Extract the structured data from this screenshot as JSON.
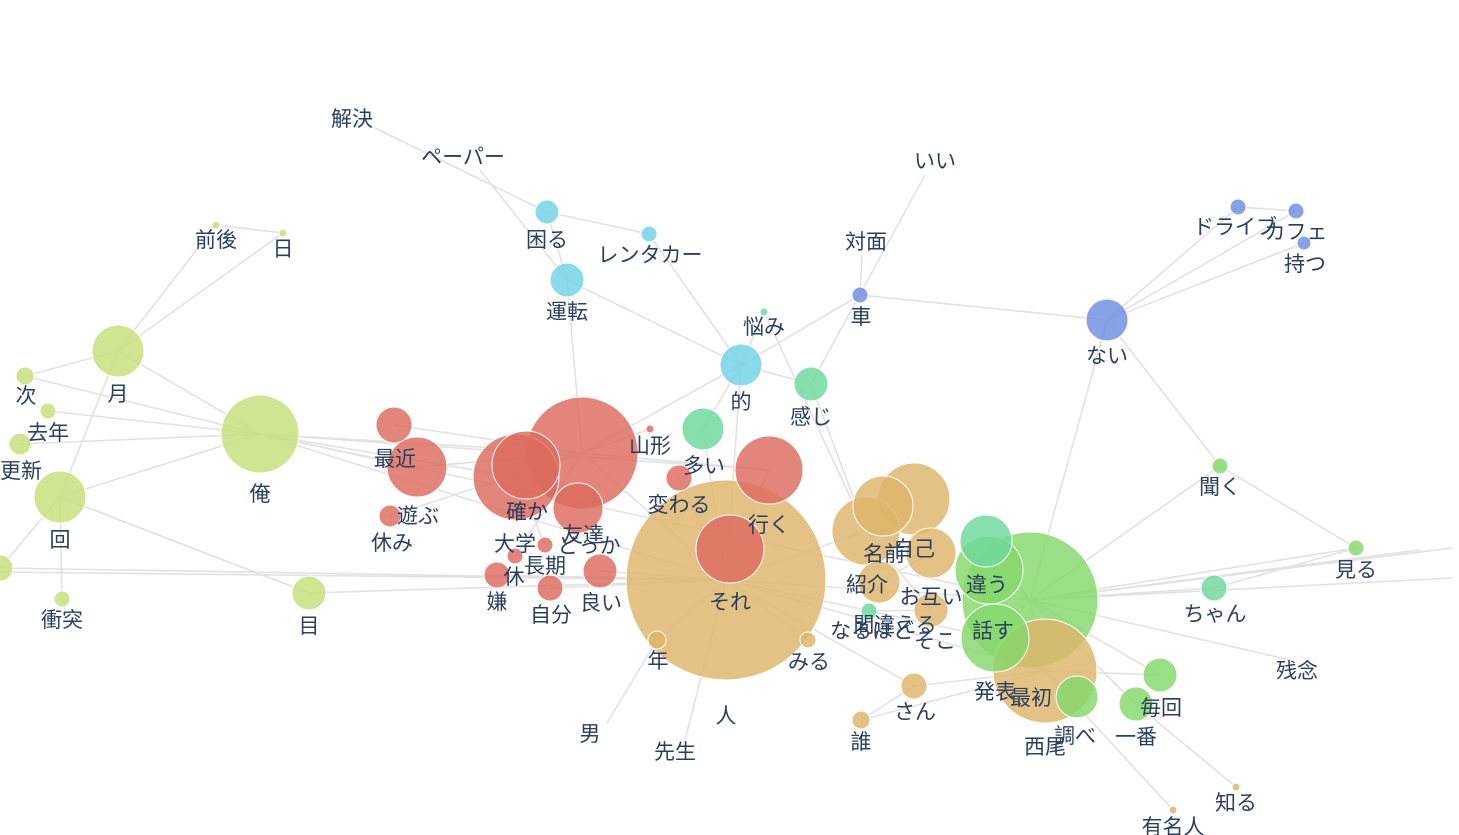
{
  "colors": {
    "red": "#dd6a5e",
    "orange": "#deb46a",
    "lime": "#c6df7a",
    "green": "#84d86a",
    "mint": "#6ed89c",
    "cyan": "#72d2e6",
    "blue": "#6e8ee2",
    "edge": "#e5e0e2",
    "label": "#2a3f5f"
  },
  "network": {
    "nodes": [
      {
        "id": "kaiketsu",
        "label": "解決",
        "g": "cyan",
        "s": 0
      },
      {
        "id": "paper",
        "label": "ペーパー",
        "g": "cyan",
        "s": 0
      },
      {
        "id": "komaru",
        "label": "困る",
        "g": "cyan",
        "s": 12
      },
      {
        "id": "rentacar",
        "label": "レンタカー",
        "g": "cyan",
        "s": 8
      },
      {
        "id": "unten",
        "label": "運転",
        "g": "cyan",
        "s": 17
      },
      {
        "id": "teki",
        "label": "的",
        "g": "cyan",
        "s": 21
      },
      {
        "id": "ii",
        "label": "いい",
        "g": "mint",
        "s": 0
      },
      {
        "id": "taimen",
        "label": "対面",
        "g": "blue",
        "s": 0
      },
      {
        "id": "kuruma",
        "label": "車",
        "g": "blue",
        "s": 8
      },
      {
        "id": "nayami",
        "label": "悩み",
        "g": "mint",
        "s": 4
      },
      {
        "id": "kanji",
        "label": "感じ",
        "g": "mint",
        "s": 17
      },
      {
        "id": "nai",
        "label": "ない",
        "g": "blue",
        "s": 21
      },
      {
        "id": "drive",
        "label": "ドライブ",
        "g": "blue",
        "s": 8
      },
      {
        "id": "cafe",
        "label": "カフェ",
        "g": "blue",
        "s": 8
      },
      {
        "id": "motsu",
        "label": "持つ",
        "g": "blue",
        "s": 7
      },
      {
        "id": "zengo",
        "label": "前後",
        "g": "lime",
        "s": 4
      },
      {
        "id": "hi",
        "label": "日",
        "g": "lime",
        "s": 4
      },
      {
        "id": "tsuki",
        "label": "月",
        "g": "lime",
        "s": 26
      },
      {
        "id": "tsugi",
        "label": "次",
        "g": "lime",
        "s": 9
      },
      {
        "id": "kyonen",
        "label": "去年",
        "g": "lime",
        "s": 8
      },
      {
        "id": "koushin",
        "label": "更新",
        "g": "lime",
        "s": 11
      },
      {
        "id": "kai",
        "label": "回",
        "g": "lime",
        "s": 26
      },
      {
        "id": "leftedge",
        "label": "",
        "g": "lime",
        "s": 13
      },
      {
        "id": "shoutotsu",
        "label": "衝突",
        "g": "lime",
        "s": 8
      },
      {
        "id": "ore",
        "label": "俺",
        "g": "lime",
        "s": 39
      },
      {
        "id": "me",
        "label": "目",
        "g": "lime",
        "s": 17
      },
      {
        "id": "saikin",
        "label": "最近",
        "g": "red",
        "s": 30
      },
      {
        "id": "saikin2",
        "label": "",
        "g": "red",
        "s": 18
      },
      {
        "id": "asobu",
        "label": "遊ぶ",
        "g": "red",
        "s": 11
      },
      {
        "id": "yasumi",
        "label": "休み",
        "g": "red",
        "s": 0
      },
      {
        "id": "yamagata",
        "label": "山形",
        "g": "red",
        "s": 4
      },
      {
        "id": "bigred",
        "label": "",
        "g": "red",
        "s": 56
      },
      {
        "id": "bigred2",
        "label": "",
        "g": "red",
        "s": 34
      },
      {
        "id": "tashika",
        "label": "確か",
        "g": "red",
        "s": 43
      },
      {
        "id": "tomodachi",
        "label": "友達",
        "g": "red",
        "s": 25
      },
      {
        "id": "daigaku",
        "label": "大学",
        "g": "red",
        "s": 0
      },
      {
        "id": "dokoka",
        "label": "どっか",
        "g": "red",
        "s": 0
      },
      {
        "id": "kyu",
        "label": "休",
        "g": "red",
        "s": 8
      },
      {
        "id": "choki",
        "label": "長期",
        "g": "red",
        "s": 8
      },
      {
        "id": "iya",
        "label": "嫌",
        "g": "red",
        "s": 13
      },
      {
        "id": "jibun",
        "label": "自分",
        "g": "red",
        "s": 13
      },
      {
        "id": "yoi",
        "label": "良い",
        "g": "red",
        "s": 17
      },
      {
        "id": "kawaru",
        "label": "変わる",
        "g": "red",
        "s": 13
      },
      {
        "id": "ooi",
        "label": "多い",
        "g": "mint",
        "s": 21
      },
      {
        "id": "iku",
        "label": "行く",
        "g": "red",
        "s": 34
      },
      {
        "id": "sore",
        "label": "それ",
        "g": "orange",
        "s": 100
      },
      {
        "id": "innerred",
        "label": "",
        "g": "red",
        "s": 34
      },
      {
        "id": "toshi",
        "label": "年",
        "g": "orange",
        "s": 9
      },
      {
        "id": "otoko",
        "label": "男",
        "g": "orange",
        "s": 0
      },
      {
        "id": "hito",
        "label": "人",
        "g": "orange",
        "s": 0
      },
      {
        "id": "sensei",
        "label": "先生",
        "g": "orange",
        "s": 0
      },
      {
        "id": "miru",
        "label": "みる",
        "g": "orange",
        "s": 8
      },
      {
        "id": "o1",
        "label": "",
        "g": "orange",
        "s": 30
      },
      {
        "id": "o2",
        "label": "",
        "g": "orange",
        "s": 36
      },
      {
        "id": "namae",
        "label": "名前",
        "g": "orange",
        "s": 34
      },
      {
        "id": "jiko",
        "label": "自己",
        "g": "orange",
        "s": 25
      },
      {
        "id": "shoukai",
        "label": "紹介",
        "g": "orange",
        "s": 21
      },
      {
        "id": "otagai",
        "label": "お互い",
        "g": "orange",
        "s": 17
      },
      {
        "id": "machigaeru",
        "label": "間違える",
        "g": "mint",
        "s": 8
      },
      {
        "id": "naruhodo",
        "label": "なるほど",
        "g": "orange",
        "s": 0
      },
      {
        "id": "soko",
        "label": "そこ",
        "g": "orange",
        "s": 0
      },
      {
        "id": "san",
        "label": "さん",
        "g": "orange",
        "s": 13
      },
      {
        "id": "dare",
        "label": "誰",
        "g": "orange",
        "s": 9
      },
      {
        "id": "mint2",
        "label": "",
        "g": "mint",
        "s": 26
      },
      {
        "id": "chigau",
        "label": "違う",
        "g": "green",
        "s": 34
      },
      {
        "id": "biggreen",
        "label": "",
        "g": "green",
        "s": 68
      },
      {
        "id": "hanasu",
        "label": "話す",
        "g": "green",
        "s": 34
      },
      {
        "id": "saisho",
        "label": "最初",
        "g": "orange",
        "s": 52
      },
      {
        "id": "happyou",
        "label": "発表",
        "g": "green",
        "s": 0
      },
      {
        "id": "nishio",
        "label": "西尾",
        "g": "orange",
        "s": 0
      },
      {
        "id": "shiraberu",
        "label": "調べ",
        "g": "green",
        "s": 21
      },
      {
        "id": "maikai",
        "label": "毎回",
        "g": "green",
        "s": 17
      },
      {
        "id": "ichiban",
        "label": "一番",
        "g": "green",
        "s": 17
      },
      {
        "id": "kiku",
        "label": "聞く",
        "g": "green",
        "s": 8
      },
      {
        "id": "chan",
        "label": "ちゃん",
        "g": "mint",
        "s": 13
      },
      {
        "id": "miru2",
        "label": "見る",
        "g": "green",
        "s": 8
      },
      {
        "id": "zannen",
        "label": "残念",
        "g": "green",
        "s": 0
      },
      {
        "id": "shiru",
        "label": "知る",
        "g": "orange",
        "s": 4
      },
      {
        "id": "yuumei",
        "label": "有名人",
        "g": "orange",
        "s": 4
      }
    ],
    "edges": [
      [
        "kaiketsu",
        "komaru"
      ],
      [
        "paper",
        "unten"
      ],
      [
        "komaru",
        "rentacar"
      ],
      [
        "komaru",
        "unten"
      ],
      [
        "rentacar",
        "teki"
      ],
      [
        "unten",
        "teki"
      ],
      [
        "unten",
        "bigred"
      ],
      [
        "teki",
        "nayami"
      ],
      [
        "teki",
        "kanji"
      ],
      [
        "teki",
        "ooi"
      ],
      [
        "teki",
        "bigred"
      ],
      [
        "teki",
        "sore"
      ],
      [
        "ii",
        "kanji"
      ],
      [
        "taimen",
        "kuruma"
      ],
      [
        "kuruma",
        "nai"
      ],
      [
        "kuruma",
        "teki"
      ],
      [
        "nai",
        "drive"
      ],
      [
        "nai",
        "cafe"
      ],
      [
        "nai",
        "motsu"
      ],
      [
        "nai",
        "kiku"
      ],
      [
        "nai",
        "biggreen"
      ],
      [
        "drive",
        "cafe"
      ],
      [
        "nayami",
        "namae"
      ],
      [
        "kanji",
        "namae"
      ],
      [
        "zengo",
        "tsuki"
      ],
      [
        "hi",
        "tsuki"
      ],
      [
        "zengo",
        "hi"
      ],
      [
        "tsuki",
        "ore"
      ],
      [
        "tsuki",
        "tsugi"
      ],
      [
        "tsuki",
        "kai"
      ],
      [
        "tsugi",
        "ore"
      ],
      [
        "kyonen",
        "ore"
      ],
      [
        "koushin",
        "ore"
      ],
      [
        "kai",
        "ore"
      ],
      [
        "kai",
        "shoutotsu"
      ],
      [
        "kai",
        "leftedge"
      ],
      [
        "kai",
        "me"
      ],
      [
        "leftedge",
        "sore"
      ],
      [
        "me",
        "sore"
      ],
      [
        "me",
        "kai"
      ],
      [
        "ore",
        "bigred"
      ],
      [
        "ore",
        "tashika"
      ],
      [
        "ore",
        "saikin"
      ],
      [
        "ore",
        "iku"
      ],
      [
        "ore",
        "sore"
      ],
      [
        "saikin",
        "bigred"
      ],
      [
        "saikin2",
        "bigred"
      ],
      [
        "asobu",
        "bigred"
      ],
      [
        "yamagata",
        "bigred"
      ],
      [
        "tashika",
        "tomodachi"
      ],
      [
        "bigred",
        "iku"
      ],
      [
        "bigred",
        "sore"
      ],
      [
        "kyu",
        "bigred"
      ],
      [
        "choki",
        "tashika"
      ],
      [
        "iya",
        "sore"
      ],
      [
        "jibun",
        "sore"
      ],
      [
        "yoi",
        "sore"
      ],
      [
        "kawaru",
        "sore"
      ],
      [
        "ooi",
        "sore"
      ],
      [
        "iku",
        "sore"
      ],
      [
        "sore",
        "toshi"
      ],
      [
        "toshi",
        "otoko"
      ],
      [
        "sore",
        "sensei"
      ],
      [
        "sore",
        "miru"
      ],
      [
        "sore",
        "namae"
      ],
      [
        "sore",
        "biggreen"
      ],
      [
        "sore",
        "saisho"
      ],
      [
        "sore",
        "san"
      ],
      [
        "san",
        "dare"
      ],
      [
        "san",
        "saisho"
      ],
      [
        "o1",
        "o2"
      ],
      [
        "namae",
        "jiko"
      ],
      [
        "jiko",
        "shoukai"
      ],
      [
        "namae",
        "otagai"
      ],
      [
        "otagai",
        "machigaeru"
      ],
      [
        "mint2",
        "biggreen"
      ],
      [
        "chigau",
        "biggreen"
      ],
      [
        "biggreen",
        "hanasu"
      ],
      [
        "biggreen",
        "saisho"
      ],
      [
        "biggreen",
        "chan"
      ],
      [
        "biggreen",
        "miru2"
      ],
      [
        "biggreen",
        "kiku"
      ],
      [
        "biggreen",
        "zannen"
      ],
      [
        "biggreen",
        "maikai"
      ],
      [
        "biggreen",
        "ichiban"
      ],
      [
        "saisho",
        "shiraberu"
      ],
      [
        "saisho",
        "maikai"
      ],
      [
        "kiku",
        "miru2"
      ],
      [
        "chan",
        "miru2"
      ],
      [
        "ichiban",
        "shiru"
      ],
      [
        "saisho",
        "yuumei"
      ],
      [
        "hanasu",
        "sore"
      ],
      [
        "dare",
        "saisho"
      ]
    ]
  }
}
